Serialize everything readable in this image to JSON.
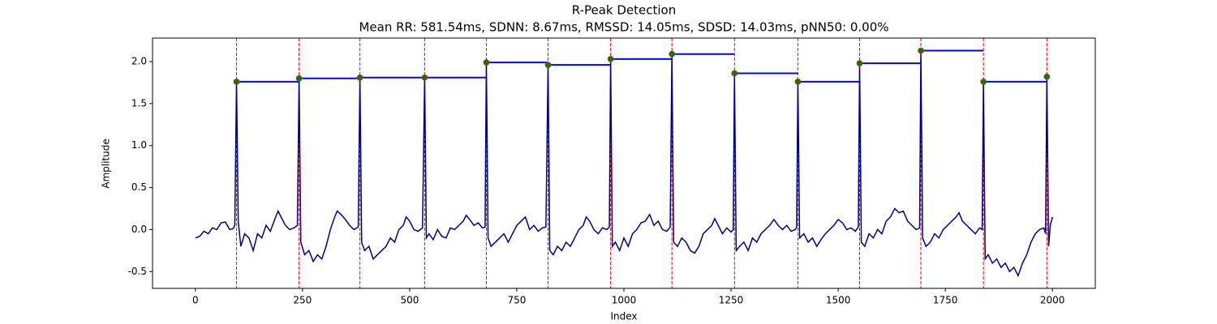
{
  "chart_data": {
    "type": "line",
    "title": "R-Peak Detection",
    "subtitle": "Mean RR: 581.54ms, SDNN: 8.67ms, RMSSD: 14.05ms, SDSD: 14.03ms, pNN50: 0.00%",
    "x_label": "Index",
    "y_label": "Amplitude",
    "xlim": [
      -100,
      2100
    ],
    "ylim": [
      -0.7,
      2.28
    ],
    "xticks": [
      0,
      250,
      500,
      750,
      1000,
      1250,
      1500,
      1750,
      2000
    ],
    "yticks": [
      -0.5,
      {
        "value": 0,
        "label": "0.0"
      },
      0.5,
      {
        "value": 1,
        "label": "1.0"
      },
      1.5,
      {
        "value": 2,
        "label": "2.0"
      }
    ],
    "series": [
      {
        "color": "#00008b",
        "x": [
          0,
          10,
          20,
          30,
          40,
          50,
          60,
          70,
          80,
          88,
          92,
          96,
          100,
          106,
          115,
          125,
          135,
          145,
          155,
          165,
          175,
          185,
          193,
          200,
          210,
          220,
          230,
          238,
          242,
          246,
          255,
          265,
          275,
          285,
          295,
          305,
          315,
          325,
          331,
          340,
          350,
          360,
          370,
          380,
          384,
          388,
          395,
          405,
          415,
          425,
          435,
          445,
          455,
          465,
          475,
          485,
          492,
          500,
          510,
          520,
          530,
          535,
          539,
          545,
          555,
          565,
          575,
          585,
          595,
          605,
          615,
          625,
          632,
          640,
          650,
          660,
          670,
          676,
          679,
          683,
          690,
          700,
          710,
          720,
          730,
          740,
          750,
          760,
          770,
          780,
          790,
          800,
          810,
          818,
          823,
          827,
          835,
          845,
          855,
          865,
          875,
          885,
          895,
          905,
          912,
          920,
          930,
          940,
          950,
          960,
          966,
          969,
          973,
          980,
          990,
          1000,
          1010,
          1020,
          1030,
          1040,
          1050,
          1060,
          1070,
          1080,
          1090,
          1100,
          1108,
          1112,
          1116,
          1125,
          1135,
          1145,
          1155,
          1165,
          1175,
          1185,
          1195,
          1205,
          1212,
          1220,
          1230,
          1240,
          1250,
          1255,
          1258,
          1262,
          1270,
          1280,
          1290,
          1300,
          1310,
          1320,
          1330,
          1340,
          1350,
          1360,
          1370,
          1380,
          1390,
          1400,
          1403,
          1406,
          1410,
          1420,
          1430,
          1440,
          1450,
          1460,
          1470,
          1480,
          1490,
          1500,
          1510,
          1520,
          1530,
          1540,
          1547,
          1550,
          1554,
          1562,
          1572,
          1582,
          1592,
          1602,
          1612,
          1622,
          1632,
          1642,
          1652,
          1662,
          1672,
          1682,
          1690,
          1693,
          1697,
          1705,
          1715,
          1725,
          1735,
          1745,
          1755,
          1765,
          1775,
          1782,
          1790,
          1800,
          1810,
          1820,
          1830,
          1836,
          1839,
          1843,
          1850,
          1860,
          1870,
          1880,
          1890,
          1900,
          1910,
          1920,
          1930,
          1940,
          1950,
          1960,
          1970,
          1980,
          1984,
          1987,
          1991,
          1995,
          2000
        ],
        "values": [
          -0.1,
          -0.08,
          -0.02,
          -0.05,
          0.02,
          0.0,
          0.08,
          0.09,
          0.0,
          0.01,
          0.05,
          1.76,
          0.1,
          -0.2,
          -0.05,
          -0.1,
          -0.25,
          -0.05,
          -0.1,
          0.05,
          -0.02,
          0.12,
          0.22,
          0.15,
          0.05,
          0.0,
          0.02,
          0.05,
          1.8,
          -0.15,
          -0.3,
          -0.25,
          -0.38,
          -0.3,
          -0.35,
          -0.2,
          0.0,
          0.15,
          0.22,
          0.18,
          0.12,
          0.05,
          0.0,
          0.03,
          1.81,
          -0.15,
          -0.25,
          -0.2,
          -0.35,
          -0.3,
          -0.25,
          -0.2,
          -0.1,
          -0.15,
          0.0,
          0.05,
          0.15,
          0.1,
          0.0,
          -0.02,
          0.02,
          1.81,
          -0.1,
          -0.05,
          -0.12,
          0.0,
          -0.08,
          -0.1,
          0.02,
          0.0,
          0.05,
          0.1,
          0.17,
          0.12,
          0.05,
          0.08,
          0.02,
          0.03,
          1.99,
          -0.1,
          -0.2,
          -0.15,
          -0.1,
          -0.05,
          -0.15,
          -0.05,
          0.05,
          0.1,
          0.15,
          0.0,
          0.05,
          -0.02,
          0.02,
          0.03,
          1.96,
          -0.25,
          -0.3,
          -0.2,
          -0.25,
          -0.15,
          -0.2,
          -0.1,
          0.0,
          0.05,
          0.15,
          0.1,
          0.0,
          -0.05,
          0.02,
          0.0,
          0.03,
          2.03,
          -0.2,
          -0.15,
          -0.25,
          -0.1,
          -0.2,
          -0.05,
          0.0,
          0.08,
          0.1,
          0.18,
          0.05,
          0.1,
          0.0,
          -0.02,
          0.03,
          2.09,
          -0.15,
          -0.2,
          -0.1,
          -0.15,
          -0.25,
          -0.28,
          -0.2,
          -0.05,
          0.0,
          0.05,
          0.13,
          0.05,
          -0.05,
          0.02,
          -0.03,
          0.0,
          1.86,
          -0.25,
          -0.2,
          -0.15,
          -0.25,
          -0.1,
          -0.15,
          -0.05,
          0.0,
          0.05,
          0.12,
          0.05,
          0.0,
          0.05,
          -0.02,
          0.0,
          0.03,
          1.76,
          -0.1,
          -0.05,
          -0.15,
          -0.1,
          -0.2,
          -0.12,
          -0.05,
          0.0,
          0.05,
          0.12,
          0.08,
          0.0,
          0.02,
          -0.02,
          0.03,
          1.98,
          -0.15,
          -0.2,
          -0.05,
          -0.1,
          0.0,
          -0.05,
          0.1,
          0.15,
          0.25,
          0.2,
          0.22,
          0.1,
          0.05,
          0.0,
          0.02,
          2.13,
          -0.1,
          -0.2,
          -0.15,
          -0.05,
          -0.1,
          0.0,
          0.05,
          0.1,
          0.15,
          0.2,
          0.1,
          0.05,
          0.0,
          -0.05,
          0.02,
          0.0,
          1.76,
          -0.35,
          -0.3,
          -0.4,
          -0.35,
          -0.45,
          -0.4,
          -0.5,
          -0.45,
          -0.55,
          -0.4,
          -0.3,
          -0.15,
          -0.05,
          0.0,
          0.02,
          -0.05,
          1.82,
          -0.2,
          0.05,
          0.15
        ]
      }
    ],
    "peaks": {
      "x": [
        96,
        242,
        384,
        535,
        679,
        823,
        969,
        1112,
        1258,
        1406,
        1550,
        1693,
        1839,
        1987
      ],
      "values": [
        1.76,
        1.8,
        1.81,
        1.81,
        1.99,
        1.96,
        2.03,
        2.09,
        1.86,
        1.76,
        1.98,
        2.13,
        1.76,
        1.82
      ],
      "marker_color": "#008000",
      "marker_edge": "#d62728",
      "vline_color": "#ff0000",
      "rr_line_color": "#0000ff"
    }
  }
}
